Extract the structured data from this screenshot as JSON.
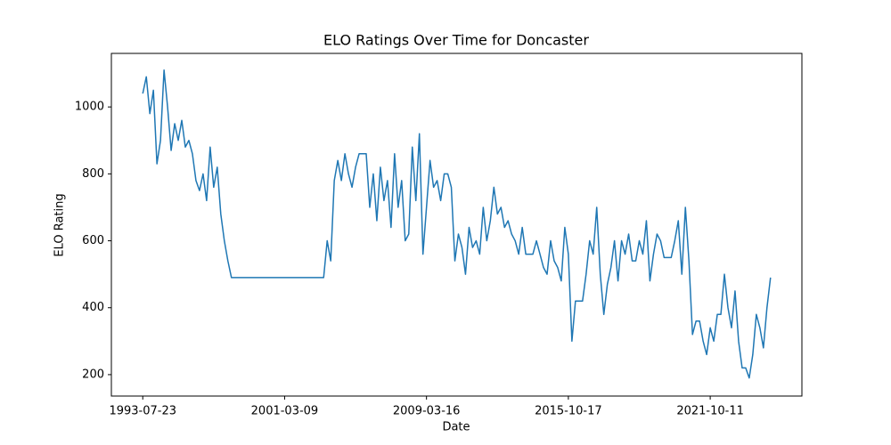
{
  "chart_data": {
    "type": "line",
    "title": "ELO Ratings Over Time for Doncaster",
    "x_label": "Date",
    "y_label": "ELO Rating",
    "color": "#1f77b4",
    "categories": [
      "1993-07-23",
      null,
      null,
      null,
      null,
      null,
      null,
      null,
      null,
      null,
      null,
      null,
      null,
      null,
      null,
      null,
      null,
      null,
      null,
      null,
      null,
      null,
      null,
      null,
      null,
      null,
      null,
      null,
      null,
      null,
      null,
      null,
      null,
      null,
      null,
      null,
      null,
      null,
      null,
      null,
      "2001-03-09",
      null,
      null,
      null,
      null,
      null,
      null,
      null,
      null,
      null,
      null,
      null,
      null,
      null,
      null,
      null,
      null,
      null,
      null,
      null,
      null,
      null,
      null,
      null,
      null,
      null,
      null,
      null,
      null,
      null,
      null,
      null,
      null,
      null,
      null,
      null,
      null,
      null,
      null,
      null,
      "2009-03-16",
      null,
      null,
      null,
      null,
      null,
      null,
      null,
      null,
      null,
      null,
      null,
      null,
      null,
      null,
      null,
      null,
      null,
      null,
      null,
      null,
      null,
      null,
      null,
      null,
      null,
      null,
      null,
      null,
      null,
      null,
      null,
      null,
      null,
      null,
      null,
      null,
      null,
      null,
      null,
      "2015-10-17",
      null,
      null,
      null,
      null,
      null,
      null,
      null,
      null,
      null,
      null,
      null,
      null,
      null,
      null,
      null,
      null,
      null,
      null,
      null,
      null,
      null,
      null,
      null,
      null,
      null,
      null,
      null,
      null,
      null,
      null,
      null,
      null,
      null,
      null,
      null,
      null,
      null,
      null,
      null,
      "2021-10-11",
      null,
      null,
      null,
      null,
      null,
      null,
      null,
      null,
      null,
      null,
      null,
      null,
      null,
      null,
      null,
      null,
      null
    ],
    "values": [
      1040,
      1090,
      980,
      1050,
      830,
      900,
      1110,
      1000,
      870,
      950,
      900,
      960,
      880,
      900,
      860,
      780,
      750,
      800,
      720,
      880,
      760,
      820,
      680,
      600,
      540,
      490,
      490,
      490,
      490,
      490,
      490,
      490,
      490,
      490,
      490,
      490,
      490,
      490,
      490,
      490,
      490,
      490,
      490,
      490,
      490,
      490,
      490,
      490,
      490,
      490,
      490,
      490,
      600,
      540,
      780,
      840,
      780,
      860,
      800,
      760,
      820,
      860,
      860,
      860,
      700,
      800,
      660,
      820,
      720,
      780,
      640,
      860,
      700,
      780,
      600,
      620,
      880,
      720,
      920,
      560,
      700,
      840,
      760,
      780,
      720,
      800,
      800,
      760,
      540,
      620,
      580,
      500,
      640,
      580,
      600,
      560,
      700,
      600,
      660,
      760,
      680,
      700,
      640,
      660,
      620,
      600,
      560,
      640,
      560,
      560,
      560,
      600,
      560,
      520,
      500,
      600,
      540,
      520,
      480,
      640,
      560,
      300,
      420,
      420,
      420,
      500,
      600,
      560,
      700,
      500,
      380,
      470,
      520,
      600,
      480,
      600,
      560,
      620,
      540,
      540,
      600,
      560,
      660,
      480,
      560,
      620,
      600,
      550,
      550,
      550,
      600,
      660,
      500,
      700,
      540,
      320,
      360,
      360,
      300,
      260,
      340,
      300,
      380,
      380,
      500,
      400,
      340,
      450,
      300,
      220,
      220,
      190,
      260,
      380,
      340,
      280,
      400,
      490
    ],
    "ylim": [
      136,
      1160
    ],
    "yticks": [
      200,
      400,
      600,
      800,
      1000
    ]
  }
}
